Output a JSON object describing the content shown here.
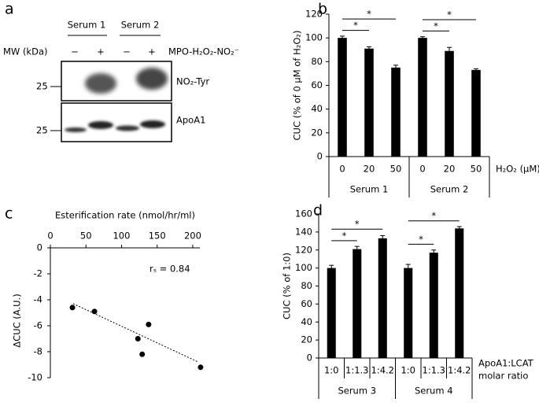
{
  "blot": {
    "label": "a",
    "groups": [
      "Serum 1",
      "Serum 2"
    ],
    "mw_label": "MW (kDa)",
    "treatment": [
      "−",
      "+",
      "−",
      "+"
    ],
    "treatment_label": "MPO-H₂O₂-NO₂⁻",
    "blots": [
      {
        "marker": 25,
        "name": "NO₂-Tyr"
      },
      {
        "marker": 25,
        "name": "ApoA1"
      }
    ]
  },
  "chart_data": [
    {
      "type": "bar",
      "label": "b",
      "ylabel": "CUC (% of 0 µM of H₂O₂)",
      "xlabel": "H₂O₂ (µM)",
      "categories": [
        "0",
        "20",
        "50",
        "0",
        "20",
        "50"
      ],
      "groups": [
        "Serum 1",
        "Serum 2"
      ],
      "values": [
        100,
        91,
        75,
        100,
        89,
        73
      ],
      "errors": [
        1.5,
        1.5,
        2,
        1,
        3,
        1
      ],
      "color": "#000000",
      "ylim": [
        0,
        120
      ],
      "yticks": [
        0,
        20,
        40,
        60,
        80,
        100,
        120
      ],
      "category_dividers": false,
      "significance": [
        {
          "from": 0,
          "to": 1,
          "label": "*"
        },
        {
          "from": 0,
          "to": 2,
          "label": "*"
        },
        {
          "from": 3,
          "to": 4,
          "label": "*"
        },
        {
          "from": 3,
          "to": 5,
          "label": "*"
        }
      ]
    },
    {
      "type": "scatter",
      "label": "c",
      "xlabel": "Esterification rate (nmol/hr/ml)",
      "ylabel": "ΔCUC  (A.U.)",
      "x": [
        31,
        62,
        123,
        138,
        129,
        211
      ],
      "y": [
        -4.6,
        -4.9,
        -7.0,
        -5.9,
        -8.2,
        -9.2
      ],
      "color": "#000000",
      "trendline": {
        "x": [
          32,
          208
        ],
        "y": [
          -4.3,
          -8.8
        ]
      },
      "annotation": "rₛ = 0.84",
      "xlim": [
        0,
        210
      ],
      "xticks": [
        0,
        50,
        100,
        150,
        200
      ],
      "ylim": [
        -10,
        0
      ],
      "yticks": [
        0,
        -2,
        -4,
        -6,
        -8,
        -10
      ]
    },
    {
      "type": "bar",
      "label": "d",
      "ylabel": "CUC (% of 1:0)",
      "xlabel": [
        "ApoA1:LCAT",
        "molar ratio"
      ],
      "categories": [
        "1:0",
        "1:1.3",
        "1:4.2",
        "1:0",
        "1:1.3",
        "1:4.2"
      ],
      "groups": [
        "Serum 3",
        "Serum 4"
      ],
      "values": [
        100,
        121,
        133,
        100,
        117,
        144
      ],
      "errors": [
        3,
        3,
        3,
        4,
        3,
        2
      ],
      "color": "#000000",
      "ylim": [
        0,
        160
      ],
      "yticks": [
        0,
        20,
        40,
        60,
        80,
        100,
        120,
        140,
        160
      ],
      "category_dividers": true,
      "significance": [
        {
          "from": 0,
          "to": 1,
          "label": "*"
        },
        {
          "from": 0,
          "to": 2,
          "label": "*"
        },
        {
          "from": 3,
          "to": 4,
          "label": "*"
        },
        {
          "from": 3,
          "to": 5,
          "label": "*"
        }
      ]
    }
  ]
}
